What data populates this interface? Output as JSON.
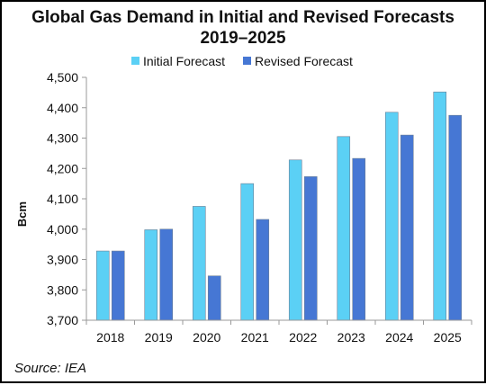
{
  "chart_data": {
    "type": "bar",
    "title": "Global Gas Demand in Initial and Revised Forecasts",
    "subtitle": "2019–2025",
    "ylabel": "Bcm",
    "xlabel": "",
    "categories": [
      "2018",
      "2019",
      "2020",
      "2021",
      "2022",
      "2023",
      "2024",
      "2025"
    ],
    "series": [
      {
        "name": "Initial Forecast",
        "color": "#5bd0f5",
        "values": [
          3928,
          3998,
          4075,
          4150,
          4228,
          4305,
          4385,
          4452
        ]
      },
      {
        "name": "Revised Forecast",
        "color": "#4677d4",
        "values": [
          3928,
          4000,
          3846,
          4032,
          4173,
          4233,
          4310,
          4375
        ]
      }
    ],
    "ylim": [
      3700,
      4500
    ],
    "yticks": [
      3700,
      3800,
      3900,
      4000,
      4100,
      4200,
      4300,
      4400,
      4500
    ],
    "ytick_labels": [
      "3,700",
      "3,800",
      "3,900",
      "4,000",
      "4,100",
      "4,200",
      "4,300",
      "4,400",
      "4,500"
    ],
    "grid": false,
    "legend_position": "top-center",
    "source": "Source: IEA"
  }
}
